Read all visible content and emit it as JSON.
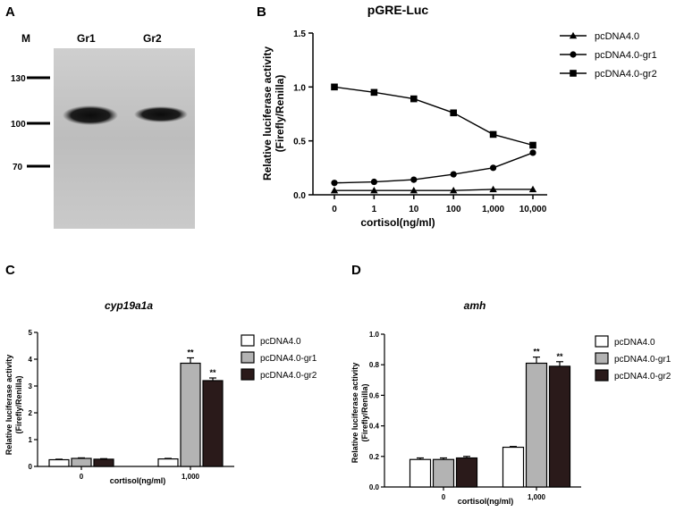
{
  "panels": {
    "a": {
      "letter": "A",
      "lanes": [
        "M",
        "Gr1",
        "Gr2"
      ],
      "markers": [
        "130",
        "100",
        "70"
      ],
      "marker_values": [
        130,
        100,
        70
      ]
    },
    "b": {
      "letter": "B"
    },
    "c": {
      "letter": "C"
    },
    "d": {
      "letter": "D"
    }
  },
  "chart_data": [
    {
      "panel": "B",
      "type": "line",
      "title": "pGRE-Luc",
      "xlabel": "cortisol(ng/ml)",
      "ylabel": [
        "Relative luciferase activity",
        "(Firefly/Renilla)"
      ],
      "categories": [
        "0",
        "1",
        "10",
        "100",
        "1,000",
        "10,000"
      ],
      "ylim": [
        0,
        1.5
      ],
      "yticks": [
        "0.0",
        "0.5",
        "1.0",
        "1.5"
      ],
      "ytick_values": [
        0,
        0.5,
        1.0,
        1.5
      ],
      "legend_position": "right",
      "series": [
        {
          "name": "pcDNA4.0",
          "marker": "triangle",
          "values": [
            0.04,
            0.04,
            0.04,
            0.04,
            0.05,
            0.05
          ]
        },
        {
          "name": "pcDNA4.0-gr1",
          "marker": "circle",
          "values": [
            0.11,
            0.12,
            0.14,
            0.19,
            0.25,
            0.39
          ]
        },
        {
          "name": "pcDNA4.0-gr2",
          "marker": "square",
          "values": [
            1.0,
            0.95,
            0.89,
            0.76,
            0.56,
            0.46
          ]
        }
      ]
    },
    {
      "panel": "C",
      "type": "bar",
      "title": "cyp19a1a",
      "xlabel": "cortisol(ng/ml)",
      "ylabel": [
        "Relative luciferase activity",
        "(Firefly/Renilla)"
      ],
      "categories": [
        "0",
        "1,000"
      ],
      "ylim": [
        0,
        5
      ],
      "yticks": [
        "0",
        "1",
        "2",
        "3",
        "4",
        "5"
      ],
      "ytick_values": [
        0,
        1,
        2,
        3,
        4,
        5
      ],
      "legend_position": "right",
      "series": [
        {
          "name": "pcDNA4.0",
          "color": "#ffffff",
          "values": [
            0.25,
            0.28
          ],
          "errors": [
            0.02,
            0.02
          ],
          "sig": [
            "",
            ""
          ]
        },
        {
          "name": "pcDNA4.0-gr1",
          "color": "#b3b3b3",
          "values": [
            0.3,
            3.85
          ],
          "errors": [
            0.02,
            0.2
          ],
          "sig": [
            "",
            "**"
          ]
        },
        {
          "name": "pcDNA4.0-gr2",
          "color": "#2a1a1a",
          "values": [
            0.27,
            3.2
          ],
          "errors": [
            0.02,
            0.1
          ],
          "sig": [
            "",
            "**"
          ]
        }
      ]
    },
    {
      "panel": "D",
      "type": "bar",
      "title": "amh",
      "xlabel": "cortisol(ng/ml)",
      "ylabel": [
        "Relative luciferase activity",
        "(Firefly/Renilla)"
      ],
      "categories": [
        "0",
        "1,000"
      ],
      "ylim": [
        0,
        1.0
      ],
      "yticks": [
        "0.0",
        "0.2",
        "0.4",
        "0.6",
        "0.8",
        "1.0"
      ],
      "ytick_values": [
        0,
        0.2,
        0.4,
        0.6,
        0.8,
        1.0
      ],
      "legend_position": "right",
      "series": [
        {
          "name": "pcDNA4.0",
          "color": "#ffffff",
          "values": [
            0.18,
            0.26
          ],
          "errors": [
            0.01,
            0.005
          ],
          "sig": [
            "",
            ""
          ]
        },
        {
          "name": "pcDNA4.0-gr1",
          "color": "#b3b3b3",
          "values": [
            0.18,
            0.81
          ],
          "errors": [
            0.01,
            0.04
          ],
          "sig": [
            "",
            "**"
          ]
        },
        {
          "name": "pcDNA4.0-gr2",
          "color": "#2a1a1a",
          "values": [
            0.19,
            0.79
          ],
          "errors": [
            0.01,
            0.03
          ],
          "sig": [
            "",
            "**"
          ]
        }
      ]
    }
  ]
}
